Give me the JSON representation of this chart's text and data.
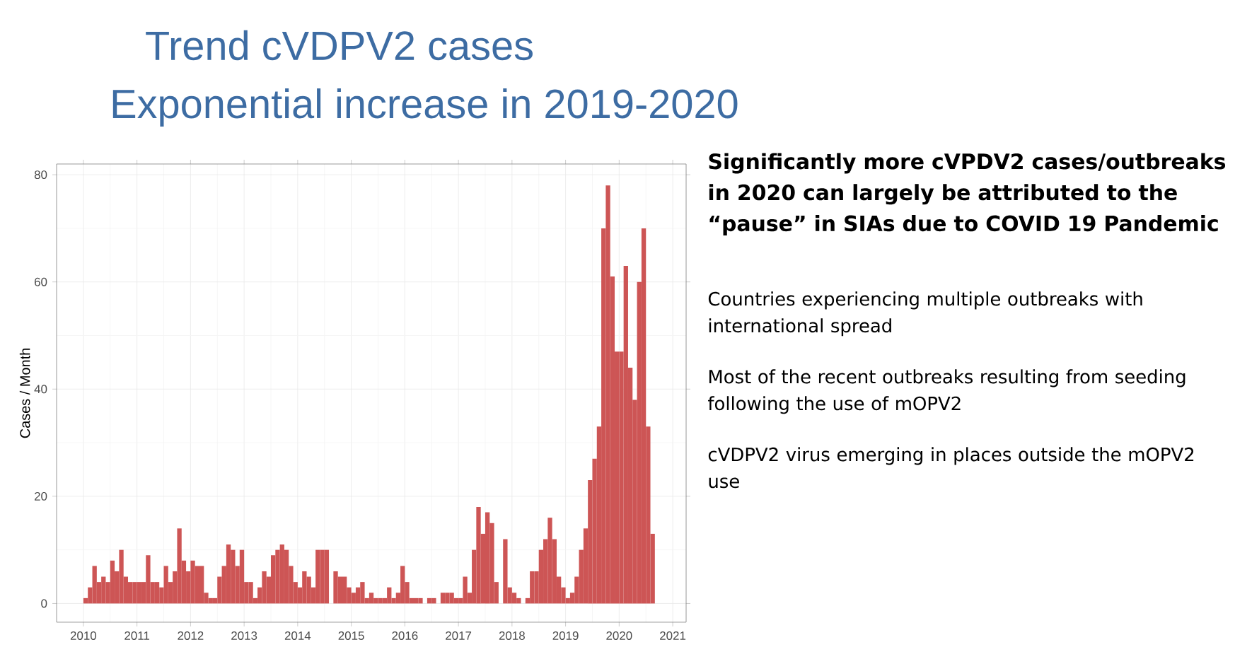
{
  "chart_data": {
    "type": "bar",
    "title": "Trend cVDPV2 cases",
    "subtitle": "Exponential increase in 2019-2020",
    "ylabel": "Cases / Month",
    "x": [
      "2010-01",
      "2010-02",
      "2010-03",
      "2010-04",
      "2010-05",
      "2010-06",
      "2010-07",
      "2010-08",
      "2010-09",
      "2010-10",
      "2010-11",
      "2010-12",
      "2011-01",
      "2011-02",
      "2011-03",
      "2011-04",
      "2011-05",
      "2011-06",
      "2011-07",
      "2011-08",
      "2011-09",
      "2011-10",
      "2011-11",
      "2011-12",
      "2012-01",
      "2012-02",
      "2012-03",
      "2012-04",
      "2012-05",
      "2012-06",
      "2012-07",
      "2012-08",
      "2012-09",
      "2012-10",
      "2012-11",
      "2012-12",
      "2013-01",
      "2013-02",
      "2013-03",
      "2013-04",
      "2013-05",
      "2013-06",
      "2013-07",
      "2013-08",
      "2013-09",
      "2013-10",
      "2013-11",
      "2013-12",
      "2014-01",
      "2014-02",
      "2014-03",
      "2014-04",
      "2014-05",
      "2014-06",
      "2014-07",
      "2014-08",
      "2014-09",
      "2014-10",
      "2014-11",
      "2014-12",
      "2015-01",
      "2015-02",
      "2015-03",
      "2015-04",
      "2015-05",
      "2015-06",
      "2015-07",
      "2015-08",
      "2015-09",
      "2015-10",
      "2015-11",
      "2015-12",
      "2016-01",
      "2016-02",
      "2016-03",
      "2016-04",
      "2016-05",
      "2016-06",
      "2016-07",
      "2016-08",
      "2016-09",
      "2016-10",
      "2016-11",
      "2016-12",
      "2017-01",
      "2017-02",
      "2017-03",
      "2017-04",
      "2017-05",
      "2017-06",
      "2017-07",
      "2017-08",
      "2017-09",
      "2017-10",
      "2017-11",
      "2017-12",
      "2018-01",
      "2018-02",
      "2018-03",
      "2018-04",
      "2018-05",
      "2018-06",
      "2018-07",
      "2018-08",
      "2018-09",
      "2018-10",
      "2018-11",
      "2018-12",
      "2019-01",
      "2019-02",
      "2019-03",
      "2019-04",
      "2019-05",
      "2019-06",
      "2019-07",
      "2019-08",
      "2019-09",
      "2019-10",
      "2019-11",
      "2019-12",
      "2020-01",
      "2020-02",
      "2020-03",
      "2020-04",
      "2020-05",
      "2020-06",
      "2020-07",
      "2020-08"
    ],
    "values": [
      1,
      3,
      7,
      4,
      5,
      4,
      8,
      6,
      10,
      5,
      4,
      4,
      4,
      4,
      9,
      4,
      4,
      3,
      7,
      4,
      6,
      14,
      8,
      6,
      8,
      7,
      7,
      2,
      1,
      1,
      5,
      7,
      11,
      10,
      7,
      10,
      4,
      4,
      1,
      3,
      6,
      5,
      9,
      10,
      11,
      10,
      7,
      4,
      3,
      6,
      5,
      3,
      10,
      10,
      10,
      0,
      6,
      5,
      5,
      3,
      2,
      3,
      4,
      1,
      2,
      1,
      1,
      1,
      3,
      1,
      2,
      7,
      4,
      1,
      1,
      1,
      0,
      1,
      1,
      0,
      2,
      2,
      2,
      1,
      1,
      5,
      2,
      10,
      18,
      13,
      17,
      15,
      4,
      0,
      12,
      3,
      2,
      1,
      0,
      1,
      6,
      6,
      10,
      12,
      16,
      12,
      5,
      3,
      1,
      2,
      5,
      10,
      14,
      23,
      27,
      33,
      70,
      78,
      61,
      47,
      47,
      63,
      44,
      38,
      60,
      70,
      33,
      13
    ],
    "color": "#cd5555",
    "xlim": [
      "2009-07",
      "2021-04"
    ],
    "xticks": [
      "2010",
      "2011",
      "2012",
      "2013",
      "2014",
      "2015",
      "2016",
      "2017",
      "2018",
      "2019",
      "2020",
      "2021"
    ],
    "ylim": [
      -3.5,
      82
    ],
    "yticks": [
      0,
      20,
      40,
      60,
      80
    ],
    "grid": true,
    "annotations": [
      "Significantly more cVPDV2 cases/outbreaks in 2020 can largely be attributed to the “pause” in SIAs due to COVID 19 Pandemic",
      "Countries experiencing multiple outbreaks with international spread",
      "Most of the recent outbreaks resulting from seeding following the use of mOPV2",
      "cVDPV2 virus emerging in places outside the mOPV2 use"
    ]
  }
}
